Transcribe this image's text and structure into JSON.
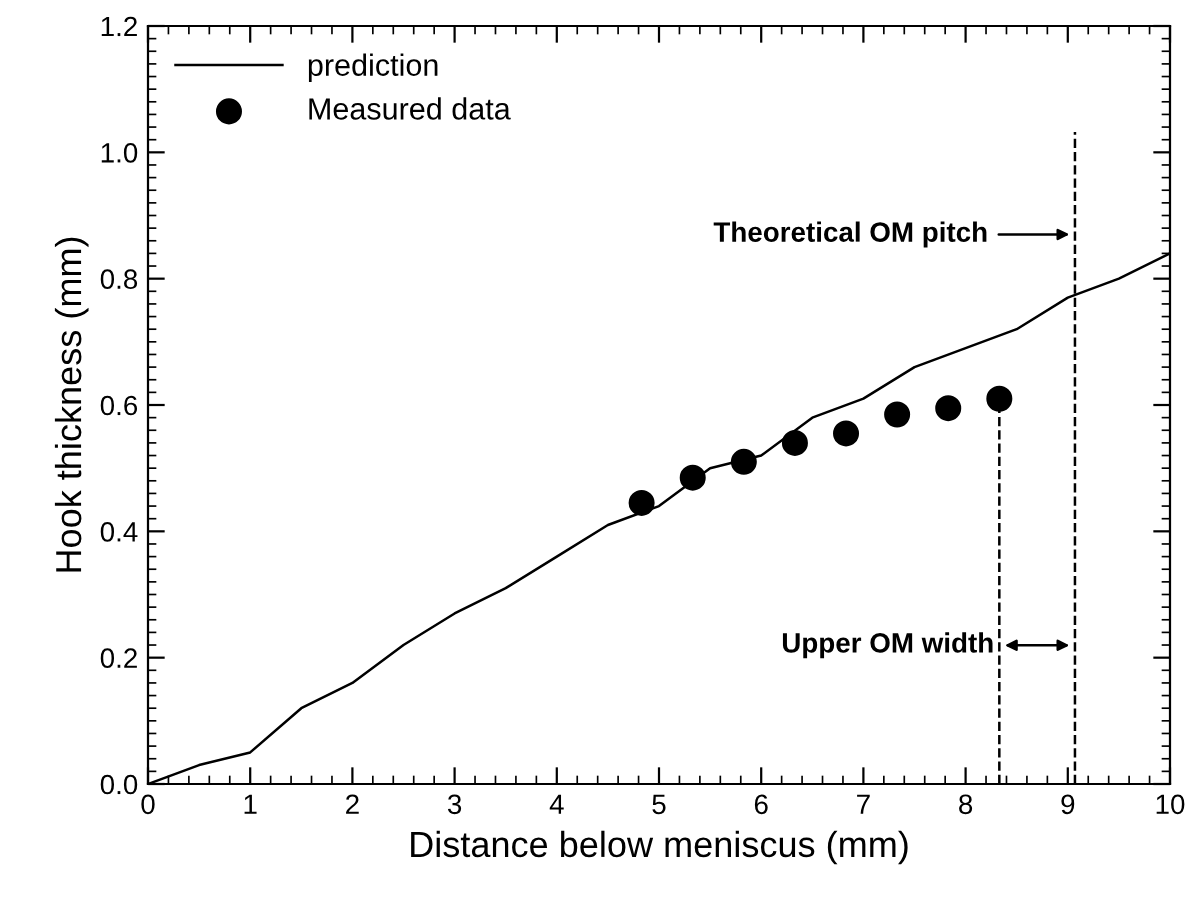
{
  "chart_data": {
    "type": "line",
    "xlabel": "Distance below meniscus (mm)",
    "ylabel": "Hook thickness (mm)",
    "xlim": [
      0,
      10
    ],
    "ylim": [
      0,
      1.2
    ],
    "xticks": [
      0,
      1,
      2,
      3,
      4,
      5,
      6,
      7,
      8,
      9,
      10
    ],
    "yticks": [
      {
        "value": 0,
        "label": "0.0"
      },
      0.2,
      0.4,
      0.6,
      0.8,
      {
        "value": 1,
        "label": "1.0"
      },
      1.2
    ],
    "legend": "top left",
    "grid": false,
    "series": [
      {
        "name": "prediction",
        "color": "#000000",
        "marker": "none",
        "line_style": "solid",
        "x": [
          0,
          0.5,
          1,
          1.5,
          2,
          2.5,
          3,
          3.5,
          4,
          4.5,
          5,
          5.5,
          6,
          6.5,
          7,
          7.5,
          8,
          8.5,
          9,
          9.5,
          10
        ],
        "values": [
          0,
          0.03,
          0.05,
          0.12,
          0.16,
          0.22,
          0.27,
          0.31,
          0.36,
          0.41,
          0.44,
          0.5,
          0.52,
          0.58,
          0.61,
          0.66,
          0.69,
          0.72,
          0.77,
          0.8,
          0.84
        ]
      },
      {
        "name": "Measured data",
        "type": "scatter",
        "color": "#000000",
        "marker": "circle",
        "x": [
          4.83,
          5.33,
          5.83,
          6.33,
          6.83,
          7.33,
          7.83,
          8.33
        ],
        "values": [
          0.445,
          0.485,
          0.51,
          0.54,
          0.555,
          0.585,
          0.595,
          0.61
        ]
      }
    ],
    "ref_lines": [
      {
        "axis": "x",
        "value": 8.33,
        "color": "#000000",
        "line_style": "dashed"
      },
      {
        "axis": "x",
        "value": 9.07,
        "color": "#000000",
        "line_style": "dashed"
      }
    ],
    "annotations": [
      "Theoretical OM pitch",
      "Upper OM width"
    ]
  }
}
